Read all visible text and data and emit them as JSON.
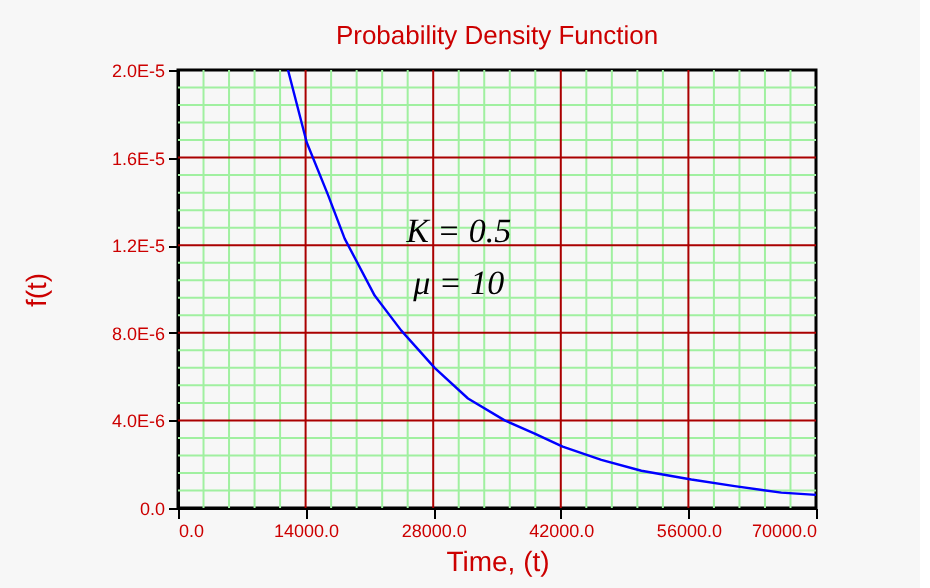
{
  "chart_data": {
    "type": "line",
    "title": "Probability Density Function",
    "xlabel": "Time, (t)",
    "ylabel": "f(t)",
    "annotations": [
      "K = 0.5",
      "μ = 10"
    ],
    "xlim": [
      0,
      70000
    ],
    "ylim": [
      0,
      2e-05
    ],
    "xticks": [
      {
        "value": 0,
        "label": "0.0"
      },
      {
        "value": 2800,
        "label": null
      },
      {
        "value": 5600,
        "label": null
      },
      {
        "value": 8400,
        "label": null
      },
      {
        "value": 11200,
        "label": null
      },
      {
        "value": 14000,
        "label": "14000.0"
      },
      {
        "value": 16800,
        "label": null
      },
      {
        "value": 19600,
        "label": null
      },
      {
        "value": 22400,
        "label": null
      },
      {
        "value": 25200,
        "label": null
      },
      {
        "value": 28000,
        "label": "28000.0"
      },
      {
        "value": 30800,
        "label": null
      },
      {
        "value": 33600,
        "label": null
      },
      {
        "value": 36400,
        "label": null
      },
      {
        "value": 39200,
        "label": null
      },
      {
        "value": 42000,
        "label": "42000.0"
      },
      {
        "value": 44800,
        "label": null
      },
      {
        "value": 47600,
        "label": null
      },
      {
        "value": 50400,
        "label": null
      },
      {
        "value": 53200,
        "label": null
      },
      {
        "value": 56000,
        "label": "56000.0"
      },
      {
        "value": 58800,
        "label": null
      },
      {
        "value": 61600,
        "label": null
      },
      {
        "value": 64400,
        "label": null
      },
      {
        "value": 67200,
        "label": null
      },
      {
        "value": 70000,
        "label": "70000.0"
      }
    ],
    "yticks": [
      {
        "value": 0,
        "label": "0.0"
      },
      {
        "value": 8e-07,
        "label": null
      },
      {
        "value": 1.6e-06,
        "label": null
      },
      {
        "value": 2.4e-06,
        "label": null
      },
      {
        "value": 3.2e-06,
        "label": null
      },
      {
        "value": 4e-06,
        "label": "4.0E-6"
      },
      {
        "value": 4.8e-06,
        "label": null
      },
      {
        "value": 5.6e-06,
        "label": null
      },
      {
        "value": 6.4e-06,
        "label": null
      },
      {
        "value": 7.2e-06,
        "label": null
      },
      {
        "value": 8e-06,
        "label": "8.0E-6"
      },
      {
        "value": 8.8e-06,
        "label": null
      },
      {
        "value": 9.6e-06,
        "label": null
      },
      {
        "value": 1.04e-05,
        "label": null
      },
      {
        "value": 1.12e-05,
        "label": null
      },
      {
        "value": 1.2e-05,
        "label": "1.2E-5"
      },
      {
        "value": 1.28e-05,
        "label": null
      },
      {
        "value": 1.36e-05,
        "label": null
      },
      {
        "value": 1.44e-05,
        "label": null
      },
      {
        "value": 1.52e-05,
        "label": null
      },
      {
        "value": 1.6e-05,
        "label": "1.6E-5"
      },
      {
        "value": 1.68e-05,
        "label": null
      },
      {
        "value": 1.76e-05,
        "label": null
      },
      {
        "value": 1.84e-05,
        "label": null
      },
      {
        "value": 1.92e-05,
        "label": null
      },
      {
        "value": 2e-05,
        "label": "2.0E-5"
      }
    ],
    "grid": true,
    "marker": "none",
    "line_style": "solid",
    "series": [
      {
        "color": "#0000ff",
        "x": [
          12069,
          14117,
          16458,
          18287,
          21578,
          24504,
          28161,
          31818,
          35841,
          39133,
          42205,
          46447,
          50836,
          56322,
          61076,
          66196,
          70000
        ],
        "values": [
          2e-05,
          1.67e-05,
          1.43e-05,
          1.23e-05,
          9.7e-06,
          8.1e-06,
          6.4e-06,
          5e-06,
          4e-06,
          3.4e-06,
          2.8e-06,
          2.2e-06,
          1.7e-06,
          1.3e-06,
          1e-06,
          7e-07,
          6e-07
        ]
      }
    ]
  }
}
